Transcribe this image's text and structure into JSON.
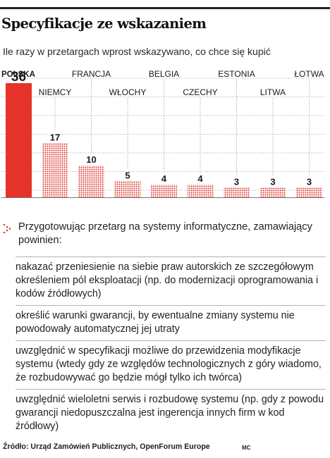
{
  "header": {
    "title": "Specyfikacje ze wskazaniem",
    "subtitle": "Ile razy w przetargach wprost wskazywano, co chce się kupić"
  },
  "colors": {
    "highlight": "#e63329",
    "dots": "#e23b34",
    "rule": "#222222"
  },
  "chart_data": {
    "type": "bar",
    "categories": [
      "POLSKA",
      "NIEMCY",
      "FRANCJA",
      "WŁOCHY",
      "BELGIA",
      "CZECHY",
      "ESTONIA",
      "LITWA",
      "ŁOTWA"
    ],
    "values": [
      36,
      17,
      10,
      5,
      4,
      4,
      3,
      3,
      3
    ],
    "value_labels": [
      "36",
      "17",
      "10",
      "5",
      "4",
      "4",
      "3",
      "3",
      "3"
    ],
    "highlight": "POLSKA",
    "ylim": [
      0,
      38
    ]
  },
  "tip": {
    "icon": "dotted-arrow-icon",
    "intro": "Przygotowując przetarg na systemy informatyczne, zamawiający powinien:",
    "items": [
      "nakazać przeniesienie na siebie praw autorskich ze szczegółowym określeniem pól eksploatacji (np. do modernizacji oprogramowania i kodów źródłowych)",
      "określić warunki gwarancji, by ewentualne zmiany systemu nie powodowały automatycznej jej utraty",
      "uwzględnić w specyfikacji możliwe do przewidzenia modyfikacje systemu (wtedy gdy ze względów technologicznych z góry wiadomo, że rozbudowywać go będzie mógł tylko ich twórca)",
      "uwzględnić wieloletni serwis i rozbudowę systemu (np. gdy z powodu gwarancji niedopuszczalna jest ingerencja innych firm w kod źródłowy)"
    ]
  },
  "footer": {
    "source": "Źródło: Urząd Zamówień Publicznych, OpenForum Europe",
    "author": "MC"
  }
}
